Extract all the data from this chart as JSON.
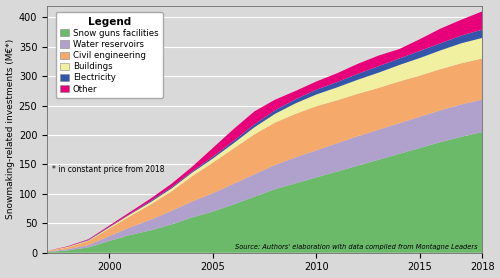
{
  "years": [
    1997,
    1998,
    1999,
    2000,
    2001,
    2002,
    2003,
    2004,
    2005,
    2006,
    2007,
    2008,
    2009,
    2010,
    2011,
    2012,
    2013,
    2014,
    2015,
    2016,
    2017,
    2018
  ],
  "snow_guns": [
    1,
    4,
    9,
    20,
    30,
    38,
    48,
    60,
    70,
    82,
    95,
    108,
    118,
    128,
    138,
    148,
    158,
    168,
    178,
    188,
    197,
    205
  ],
  "water_reservoirs": [
    1,
    2,
    4,
    8,
    13,
    18,
    23,
    27,
    31,
    35,
    38,
    41,
    44,
    46,
    48,
    50,
    51,
    52,
    53,
    54,
    55,
    55
  ],
  "civil_engineering": [
    1,
    3,
    7,
    13,
    19,
    26,
    33,
    43,
    52,
    60,
    68,
    72,
    74,
    75,
    73,
    72,
    71,
    71,
    70,
    70,
    70,
    70
  ],
  "buildings": [
    0,
    1,
    1,
    2,
    3,
    4,
    5,
    6,
    7,
    9,
    12,
    15,
    18,
    20,
    22,
    24,
    26,
    28,
    30,
    32,
    34,
    35
  ],
  "electricity": [
    0,
    0,
    1,
    1,
    1,
    2,
    2,
    2,
    3,
    4,
    5,
    6,
    7,
    8,
    9,
    10,
    11,
    11,
    12,
    12,
    13,
    14
  ],
  "other": [
    0,
    1,
    1,
    2,
    3,
    4,
    6,
    8,
    15,
    20,
    22,
    18,
    14,
    14,
    15,
    17,
    18,
    16,
    20,
    25,
    27,
    31
  ],
  "colors": {
    "snow_guns": "#6aba6a",
    "water_reservoirs": "#b0a0cc",
    "civil_engineering": "#f5a96a",
    "buildings": "#f0f0a0",
    "electricity": "#3355aa",
    "other": "#e8007a"
  },
  "ylabel": "Snowmaking-related investments (M€*)",
  "ylim": [
    0,
    420
  ],
  "yticks": [
    0,
    50,
    100,
    150,
    200,
    250,
    300,
    350,
    400
  ],
  "xlim": [
    1997,
    2018
  ],
  "xticks": [
    2000,
    2005,
    2010,
    2015,
    2018
  ],
  "legend_labels": [
    "Snow guns facilities",
    "Water reservoirs",
    "Civil engineering",
    "Buildings",
    "Electricity",
    "Other"
  ],
  "legend_note": "* in constant price from 2018",
  "source_text": "Source: Authors' elaboration with data compiled from Montagne Leaders",
  "bg_color": "#d9d9d9"
}
